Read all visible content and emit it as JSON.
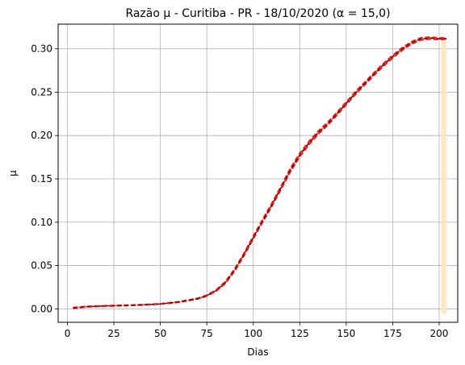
{
  "chart_data": {
    "type": "line",
    "title": "Razão μ - Curitiba - PR - 18/10/2020 (α = 15,0)",
    "xlabel": "Dias",
    "ylabel": "μ",
    "xlim": [
      -5,
      210
    ],
    "ylim": [
      -0.0155,
      0.3285
    ],
    "xticks": [
      0,
      25,
      50,
      75,
      100,
      125,
      150,
      175,
      200
    ],
    "yticks": [
      0.0,
      0.05,
      0.1,
      0.15,
      0.2,
      0.25,
      0.3
    ],
    "xtick_labels": [
      "0",
      "25",
      "50",
      "75",
      "100",
      "125",
      "150",
      "175",
      "200"
    ],
    "ytick_labels": [
      "0.00",
      "0.05",
      "0.10",
      "0.15",
      "0.20",
      "0.25",
      "0.30"
    ],
    "grid": true,
    "colors": {
      "band": "#f08080",
      "series_lines": "#e31a1c",
      "center_line": "#8b0000",
      "highlight": "#ffe4c4"
    },
    "highlight_span": {
      "x": [
        201,
        204
      ]
    },
    "x": [
      3,
      10,
      20,
      30,
      40,
      50,
      60,
      70,
      75,
      80,
      85,
      90,
      95,
      100,
      105,
      110,
      115,
      120,
      125,
      130,
      135,
      140,
      145,
      150,
      155,
      160,
      165,
      170,
      175,
      180,
      185,
      190,
      195,
      200,
      204
    ],
    "series": [
      {
        "values": [
          0.0015,
          0.0028,
          0.0036,
          0.0041,
          0.0048,
          0.0059,
          0.0082,
          0.0122,
          0.0158,
          0.0218,
          0.0314,
          0.0461,
          0.0642,
          0.0838,
          0.1031,
          0.1218,
          0.1418,
          0.1622,
          0.1794,
          0.1932,
          0.2052,
          0.2151,
          0.2266,
          0.2386,
          0.2506,
          0.2616,
          0.2726,
          0.2831,
          0.2926,
          0.3011,
          0.3081,
          0.3126,
          0.3136,
          0.3126,
          0.3126
        ]
      },
      {
        "values": [
          0.0005,
          0.0022,
          0.0032,
          0.0037,
          0.0044,
          0.0055,
          0.0076,
          0.0114,
          0.0148,
          0.0204,
          0.0294,
          0.0437,
          0.0614,
          0.0808,
          0.0999,
          0.1184,
          0.1382,
          0.1584,
          0.1756,
          0.1896,
          0.2018,
          0.2119,
          0.2236,
          0.2356,
          0.2476,
          0.2586,
          0.2696,
          0.2801,
          0.2896,
          0.2983,
          0.3055,
          0.3102,
          0.3114,
          0.3108,
          0.3112
        ]
      },
      {
        "values": [
          0.001,
          0.0025,
          0.0034,
          0.0039,
          0.0046,
          0.0057,
          0.0079,
          0.0118,
          0.0153,
          0.0211,
          0.0304,
          0.0449,
          0.0628,
          0.0823,
          0.1015,
          0.1201,
          0.14,
          0.1603,
          0.1775,
          0.1914,
          0.2035,
          0.2135,
          0.2251,
          0.2371,
          0.2491,
          0.2601,
          0.2711,
          0.2816,
          0.2911,
          0.2997,
          0.3068,
          0.3114,
          0.3125,
          0.3117,
          0.3119
        ]
      }
    ]
  }
}
